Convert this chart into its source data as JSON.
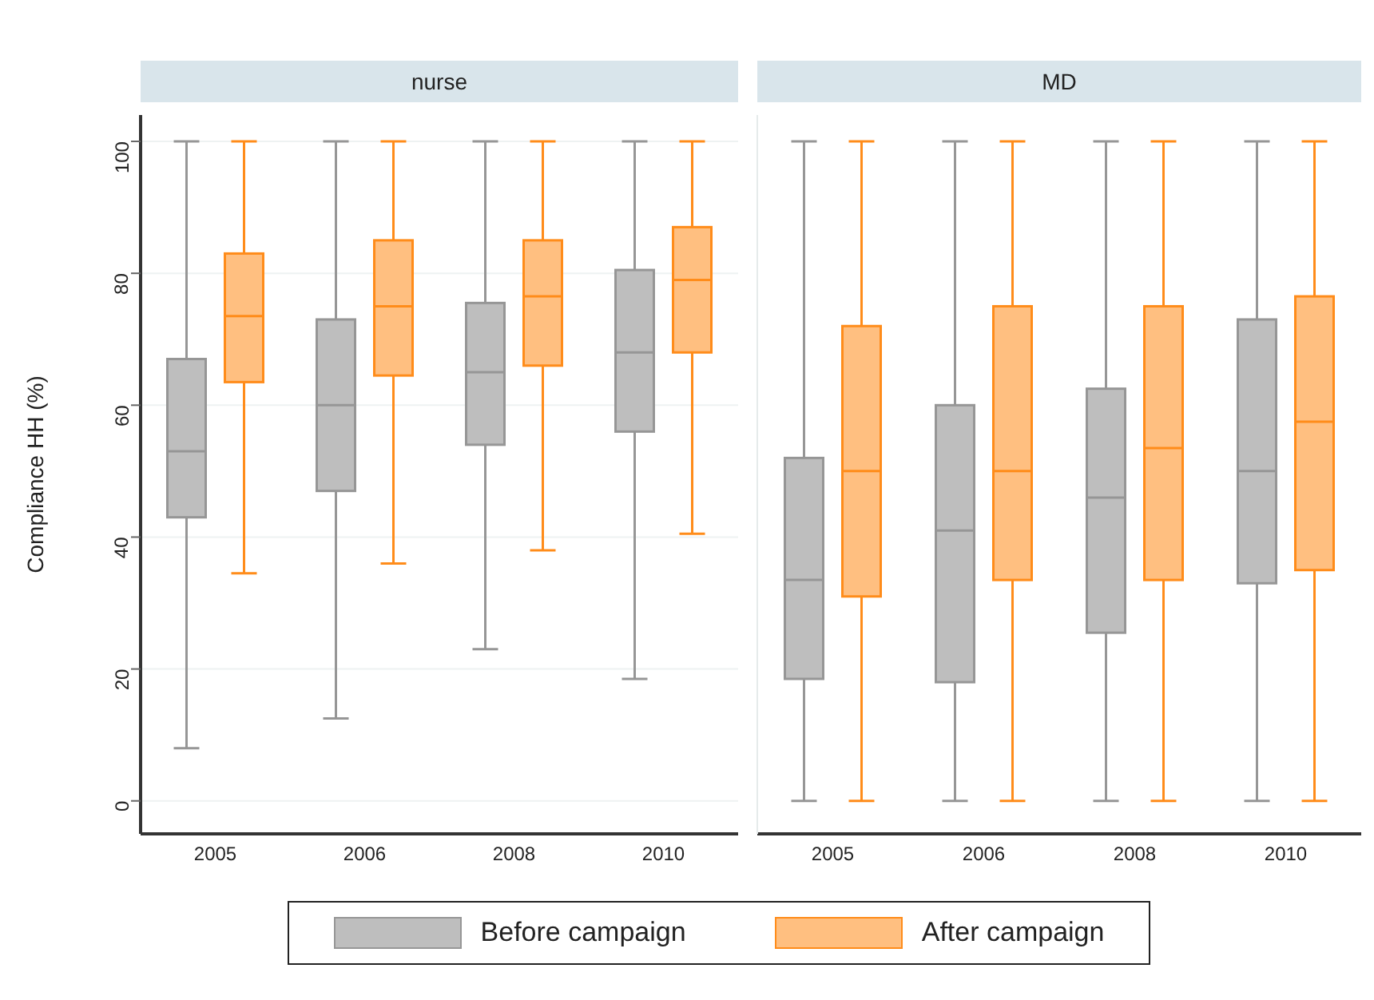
{
  "chart_data": [
    {
      "type": "box",
      "title": "nurse",
      "ylabel": "Compliance HH (%)",
      "categories": [
        "2005",
        "2006",
        "2008",
        "2010"
      ],
      "ylim": [
        -5,
        104
      ],
      "yticks": [
        0,
        20,
        40,
        60,
        80,
        100
      ],
      "grid": "y",
      "legend": "bottom",
      "series": [
        {
          "name": "Before campaign",
          "color": "#bebebe",
          "boxes": [
            {
              "low": 8,
              "q1": 43,
              "median": 53,
              "q3": 67,
              "high": 100
            },
            {
              "low": 12.5,
              "q1": 47,
              "median": 60,
              "q3": 73,
              "high": 100
            },
            {
              "low": 23,
              "q1": 54,
              "median": 65,
              "q3": 75.5,
              "high": 100
            },
            {
              "low": 18.5,
              "q1": 56,
              "median": 68,
              "q3": 80.5,
              "high": 100
            }
          ]
        },
        {
          "name": "After campaign",
          "color": "#ffbf80",
          "boxes": [
            {
              "low": 34.5,
              "q1": 63.5,
              "median": 73.5,
              "q3": 83,
              "high": 100
            },
            {
              "low": 36,
              "q1": 64.5,
              "median": 75,
              "q3": 85,
              "high": 100
            },
            {
              "low": 38,
              "q1": 66,
              "median": 76.5,
              "q3": 85,
              "high": 100
            },
            {
              "low": 40.5,
              "q1": 68,
              "median": 79,
              "q3": 87,
              "high": 100
            }
          ]
        }
      ]
    },
    {
      "type": "box",
      "title": "MD",
      "categories": [
        "2005",
        "2006",
        "2008",
        "2010"
      ],
      "ylim": [
        -5,
        104
      ],
      "yticks": [
        0,
        20,
        40,
        60,
        80,
        100
      ],
      "grid": "y",
      "tick_labels": "x",
      "series": [
        {
          "color": "#bebebe",
          "boxes": [
            {
              "low": 0,
              "q1": 18.5,
              "median": 33.5,
              "q3": 52,
              "high": 100
            },
            {
              "low": 0,
              "q1": 18,
              "median": 41,
              "q3": 60,
              "high": 100
            },
            {
              "low": 0,
              "q1": 25.5,
              "median": 46,
              "q3": 62.5,
              "high": 100
            },
            {
              "low": 0,
              "q1": 33,
              "median": 50,
              "q3": 73,
              "high": 100
            }
          ]
        },
        {
          "color": "#ffbf80",
          "boxes": [
            {
              "low": 0,
              "q1": 31,
              "median": 50,
              "q3": 72,
              "high": 100
            },
            {
              "low": 0,
              "q1": 33.5,
              "median": 50,
              "q3": 75,
              "high": 100
            },
            {
              "low": 0,
              "q1": 33.5,
              "median": 53.5,
              "q3": 75,
              "high": 100
            },
            {
              "low": 0,
              "q1": 35,
              "median": 57.5,
              "q3": 76.5,
              "high": 100
            }
          ]
        }
      ]
    }
  ]
}
